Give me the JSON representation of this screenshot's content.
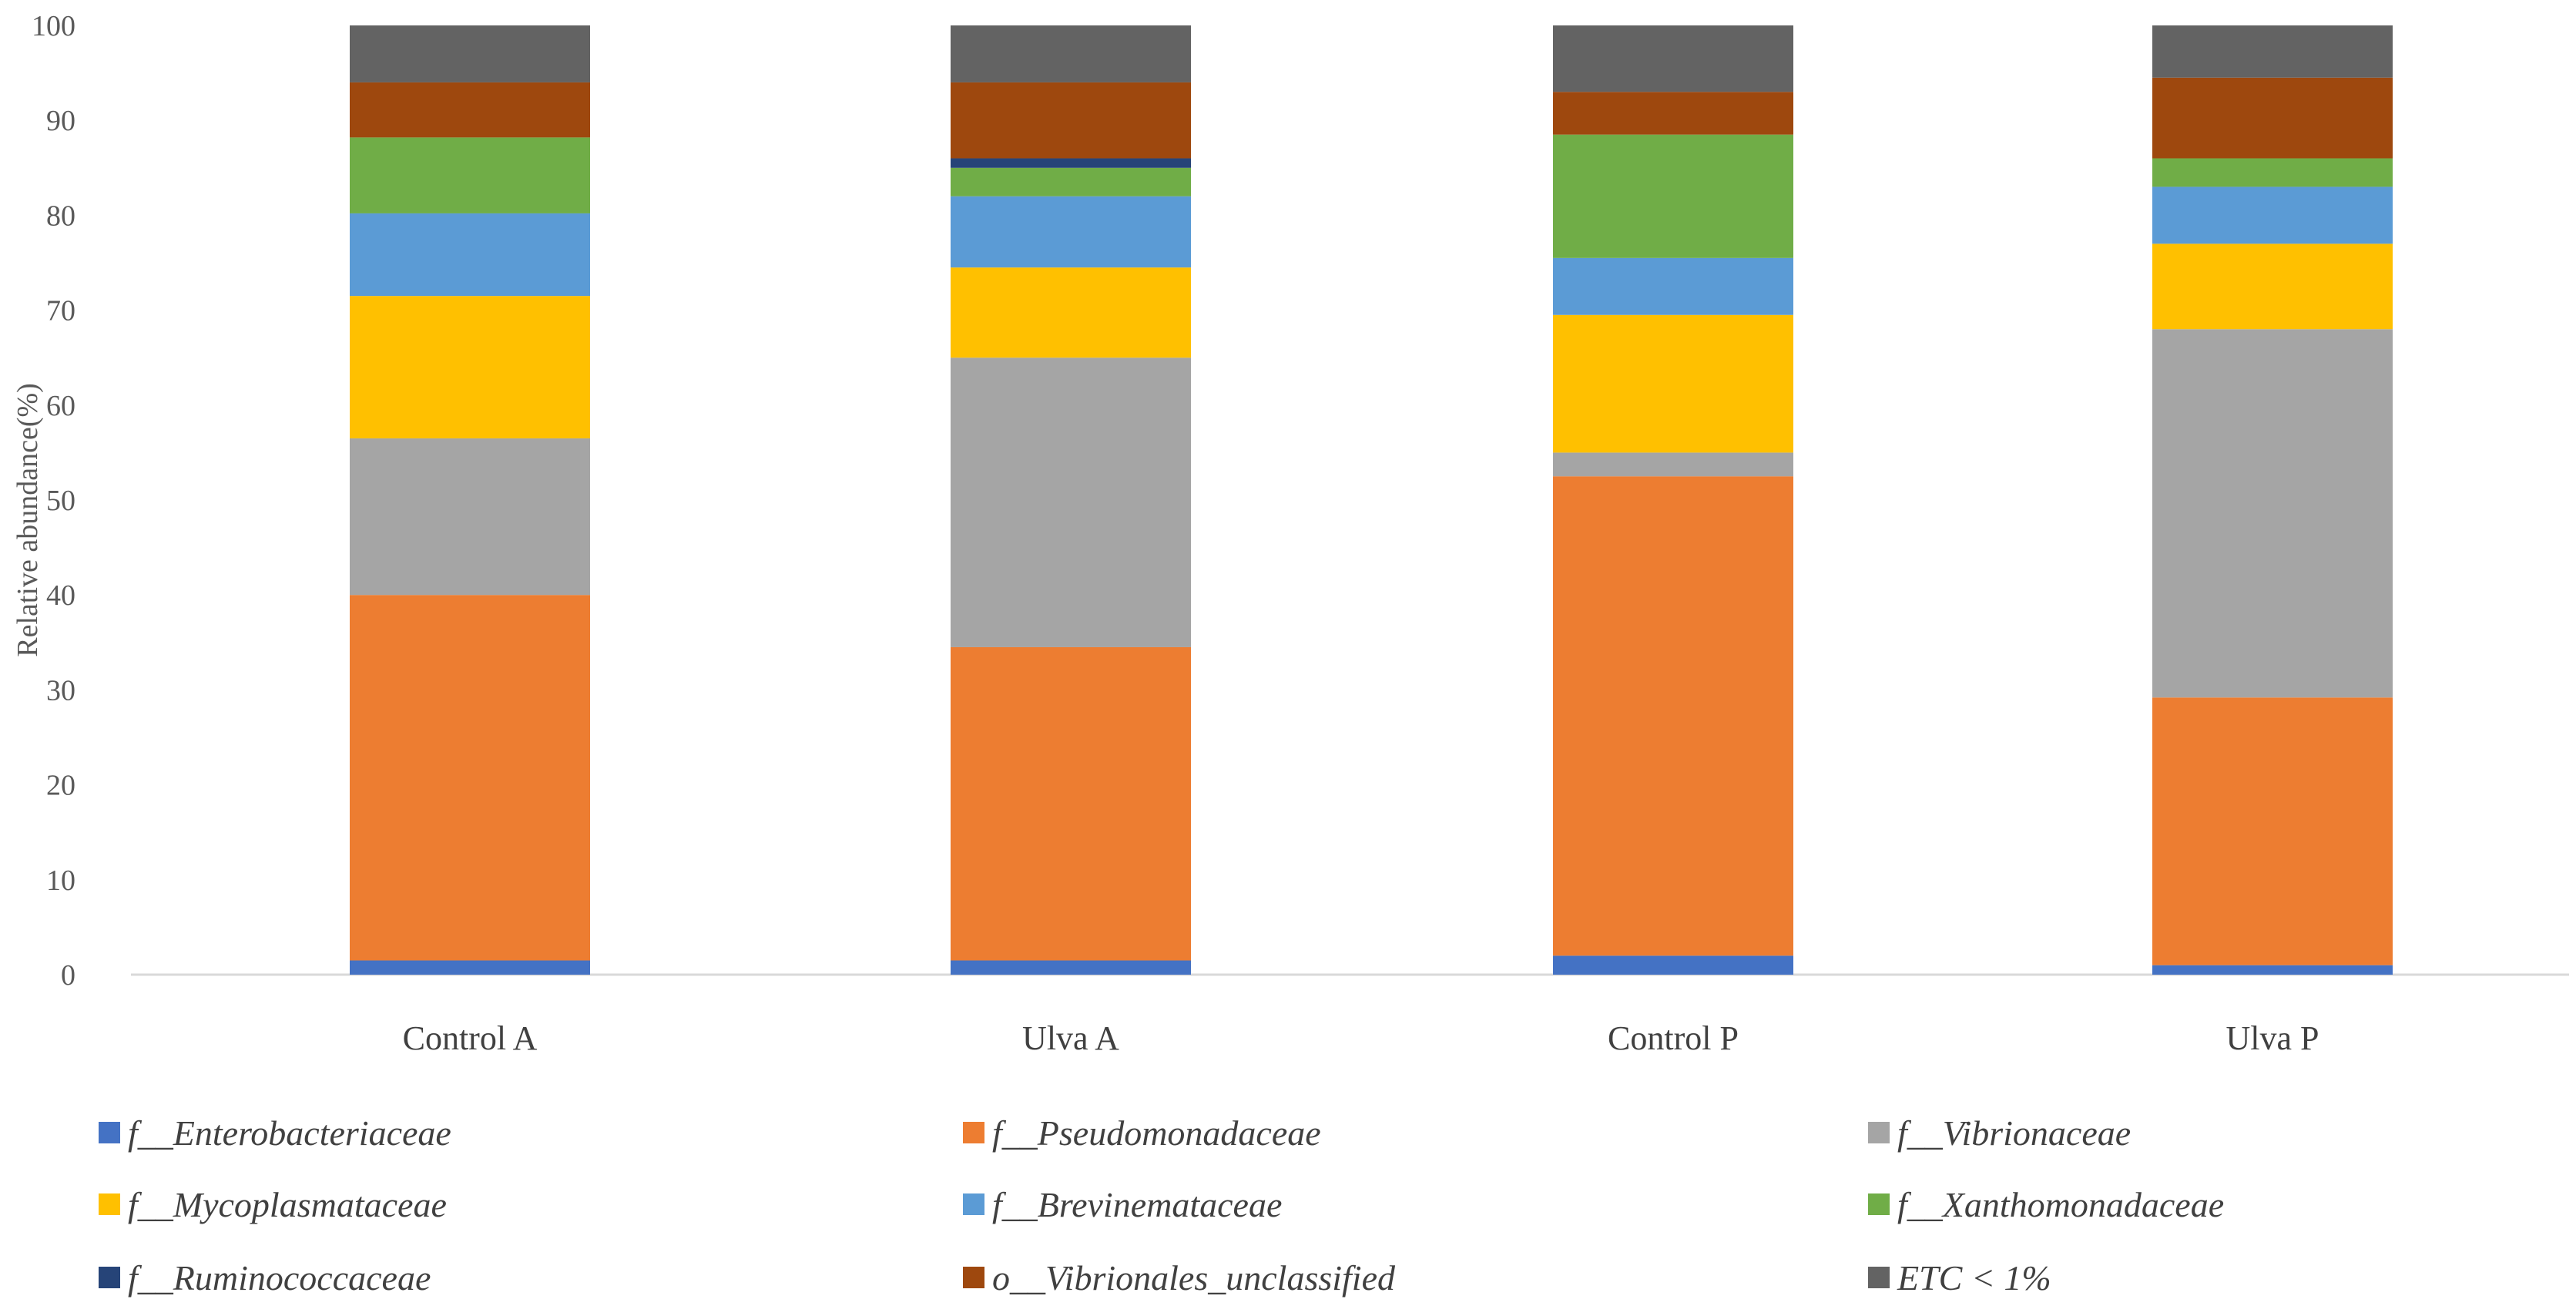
{
  "chart_data": {
    "type": "bar",
    "stacked": true,
    "title": "",
    "xlabel": "",
    "ylabel": "Relative abundance(%)",
    "ylim": [
      0,
      100
    ],
    "yticks": [
      0,
      10,
      20,
      30,
      40,
      50,
      60,
      70,
      80,
      90,
      100
    ],
    "grid": false,
    "legend_position": "bottom",
    "categories": [
      "Control A",
      "Ulva A",
      "Control P",
      "Ulva P"
    ],
    "series": [
      {
        "name": "f__Enterobacteriaceae",
        "color": "#4472C4",
        "values": [
          1.5,
          1.5,
          2.0,
          1.0
        ]
      },
      {
        "name": "f__Pseudomonadaceae",
        "color": "#ED7D31",
        "values": [
          38.5,
          33.0,
          50.5,
          28.2
        ]
      },
      {
        "name": "f__Vibrionaceae",
        "color": "#A5A5A5",
        "values": [
          16.5,
          30.5,
          2.5,
          38.8
        ]
      },
      {
        "name": "f__Mycoplasmataceae",
        "color": "#FFC000",
        "values": [
          15.0,
          9.5,
          14.5,
          9.0
        ]
      },
      {
        "name": "f__Brevinemataceae",
        "color": "#5B9BD5",
        "values": [
          8.7,
          7.5,
          6.0,
          6.0
        ]
      },
      {
        "name": "f__Xanthomonadaceae",
        "color": "#70AD47",
        "values": [
          8.0,
          3.0,
          13.0,
          3.0
        ]
      },
      {
        "name": "f__Ruminococcaceae",
        "color": "#264478",
        "values": [
          0.0,
          1.0,
          0.0,
          0.0
        ]
      },
      {
        "name": "o__Vibrionales_unclassified",
        "color": "#9E480E",
        "values": [
          5.8,
          8.0,
          4.5,
          8.5
        ]
      },
      {
        "name": "ETC < 1%",
        "color": "#636363",
        "values": [
          6.0,
          6.0,
          7.0,
          5.5
        ]
      }
    ]
  }
}
